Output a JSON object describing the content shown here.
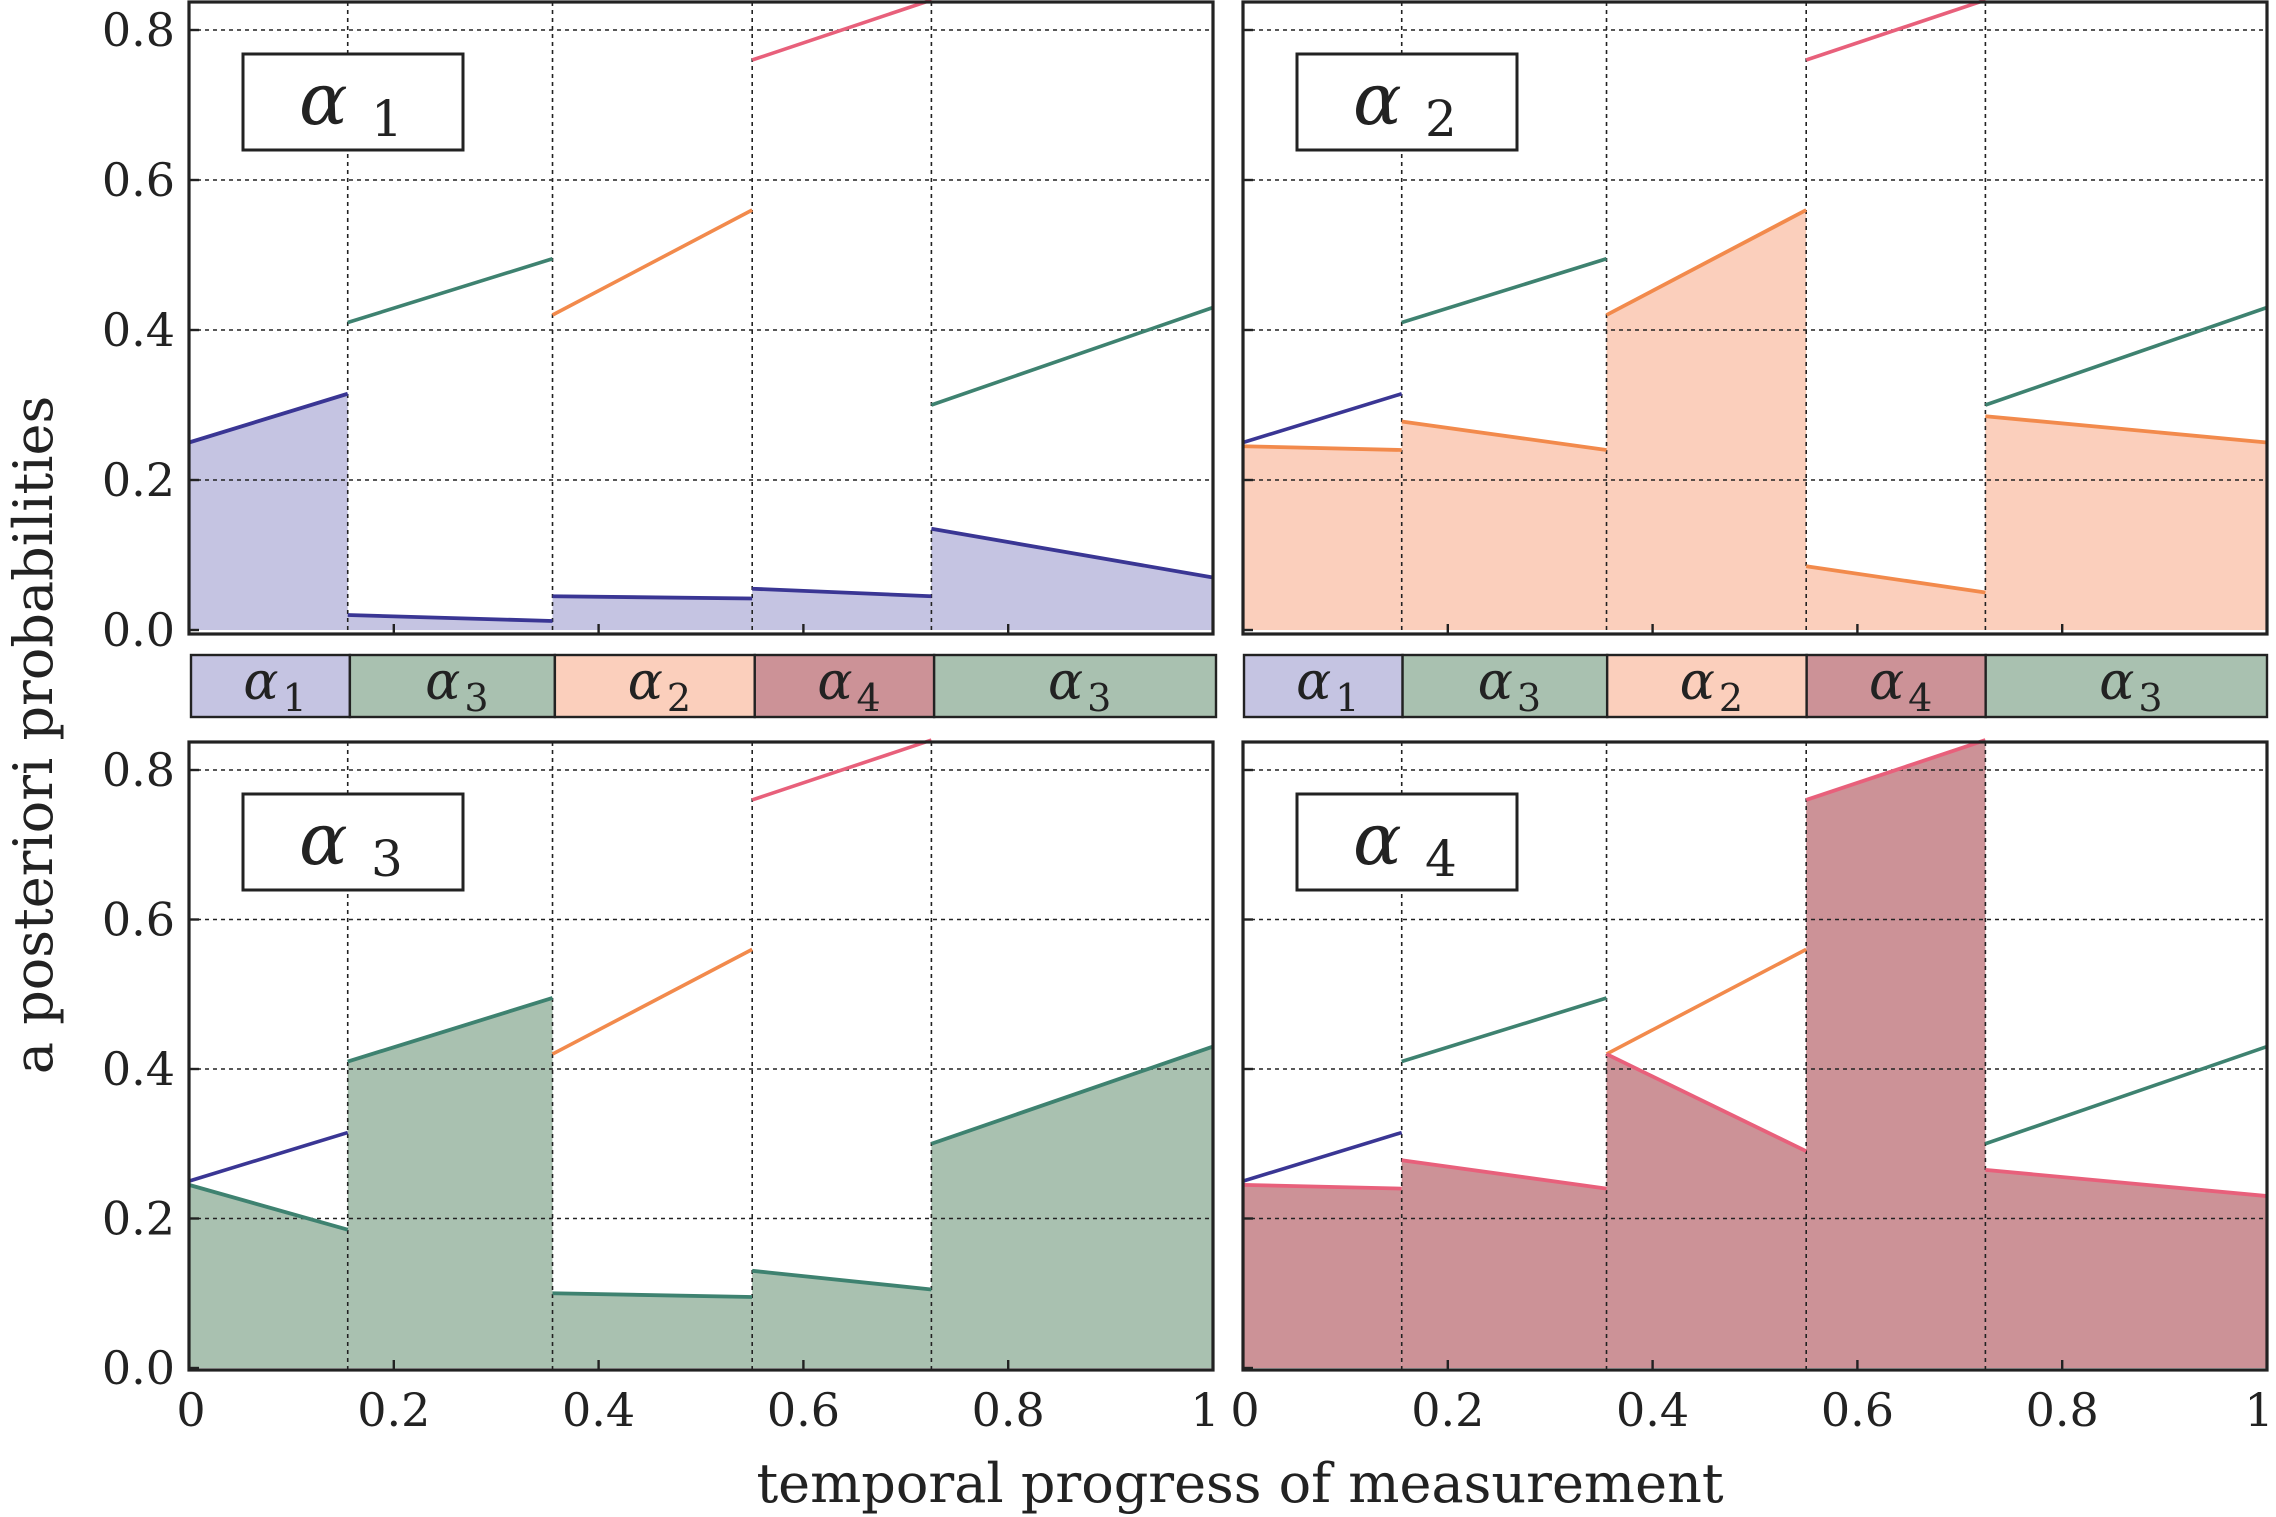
{
  "chart_data": {
    "type": "area",
    "title": "",
    "xlabel": "temporal progress of measurement",
    "ylabel": "a posteriori probabilities",
    "xlim": [
      0,
      1
    ],
    "ylim": [
      0,
      0.8
    ],
    "x_tick_labels": [
      "0",
      "0.2",
      "0.4",
      "0.6",
      "0.8",
      "1"
    ],
    "y_tick_labels": [
      "0.0",
      "0.2",
      "0.4",
      "0.6",
      "0.8"
    ],
    "segment_boundaries": [
      0,
      0.155,
      0.355,
      0.55,
      0.725,
      1
    ],
    "segment_sequence": [
      {
        "class": "α",
        "sub": "1",
        "series": "alpha1"
      },
      {
        "class": "α",
        "sub": "3",
        "series": "alpha3"
      },
      {
        "class": "α",
        "sub": "2",
        "series": "alpha2"
      },
      {
        "class": "α",
        "sub": "4",
        "series": "alpha4"
      },
      {
        "class": "α",
        "sub": "3",
        "series": "alpha3"
      }
    ],
    "series_colors": {
      "alpha1": {
        "line": "#3a3694",
        "fill": "#c5c4e2"
      },
      "alpha2": {
        "line": "#f28a4c",
        "fill": "#fbcfbc"
      },
      "alpha3": {
        "line": "#3e8270",
        "fill": "#a9c1b0"
      },
      "alpha4": {
        "line": "#e8607b",
        "fill": "#cc9297"
      }
    },
    "max_lines": [
      {
        "series": "alpha1",
        "x": [
          0,
          0.155
        ],
        "y": [
          0.25,
          0.315
        ]
      },
      {
        "series": "alpha3",
        "x": [
          0.155,
          0.355
        ],
        "y": [
          0.41,
          0.495
        ]
      },
      {
        "series": "alpha2",
        "x": [
          0.355,
          0.55
        ],
        "y": [
          0.42,
          0.56
        ]
      },
      {
        "series": "alpha4",
        "x": [
          0.55,
          0.725
        ],
        "y": [
          0.76,
          0.84
        ]
      },
      {
        "series": "alpha3",
        "x": [
          0.725,
          1
        ],
        "y": [
          0.3,
          0.43
        ]
      }
    ],
    "panels": [
      {
        "name": "alpha1",
        "label_main": "α",
        "label_sub": "1",
        "series": "alpha1",
        "segments": [
          {
            "x": [
              0,
              0.155
            ],
            "y": [
              0.25,
              0.315
            ]
          },
          {
            "x": [
              0.155,
              0.355
            ],
            "y": [
              0.02,
              0.012
            ]
          },
          {
            "x": [
              0.355,
              0.55
            ],
            "y": [
              0.045,
              0.042
            ]
          },
          {
            "x": [
              0.55,
              0.725
            ],
            "y": [
              0.055,
              0.045
            ]
          },
          {
            "x": [
              0.725,
              1
            ],
            "y": [
              0.135,
              0.07
            ]
          }
        ]
      },
      {
        "name": "alpha2",
        "label_main": "α",
        "label_sub": "2",
        "series": "alpha2",
        "segments": [
          {
            "x": [
              0,
              0.155
            ],
            "y": [
              0.245,
              0.24
            ]
          },
          {
            "x": [
              0.155,
              0.355
            ],
            "y": [
              0.278,
              0.24
            ]
          },
          {
            "x": [
              0.355,
              0.55
            ],
            "y": [
              0.42,
              0.56
            ]
          },
          {
            "x": [
              0.55,
              0.725
            ],
            "y": [
              0.085,
              0.05
            ]
          },
          {
            "x": [
              0.725,
              1
            ],
            "y": [
              0.285,
              0.25
            ]
          }
        ]
      },
      {
        "name": "alpha3",
        "label_main": "α",
        "label_sub": "3",
        "series": "alpha3",
        "segments": [
          {
            "x": [
              0,
              0.155
            ],
            "y": [
              0.245,
              0.185
            ]
          },
          {
            "x": [
              0.155,
              0.355
            ],
            "y": [
              0.41,
              0.495
            ]
          },
          {
            "x": [
              0.355,
              0.55
            ],
            "y": [
              0.1,
              0.095
            ]
          },
          {
            "x": [
              0.55,
              0.725
            ],
            "y": [
              0.13,
              0.105
            ]
          },
          {
            "x": [
              0.725,
              1
            ],
            "y": [
              0.3,
              0.43
            ]
          }
        ]
      },
      {
        "name": "alpha4",
        "label_main": "α",
        "label_sub": "4",
        "series": "alpha4",
        "segments": [
          {
            "x": [
              0,
              0.155
            ],
            "y": [
              0.245,
              0.24
            ]
          },
          {
            "x": [
              0.155,
              0.355
            ],
            "y": [
              0.278,
              0.24
            ]
          },
          {
            "x": [
              0.355,
              0.55
            ],
            "y": [
              0.42,
              0.29
            ]
          },
          {
            "x": [
              0.55,
              0.725
            ],
            "y": [
              0.76,
              0.84
            ]
          },
          {
            "x": [
              0.725,
              1
            ],
            "y": [
              0.265,
              0.23
            ]
          }
        ]
      }
    ]
  }
}
